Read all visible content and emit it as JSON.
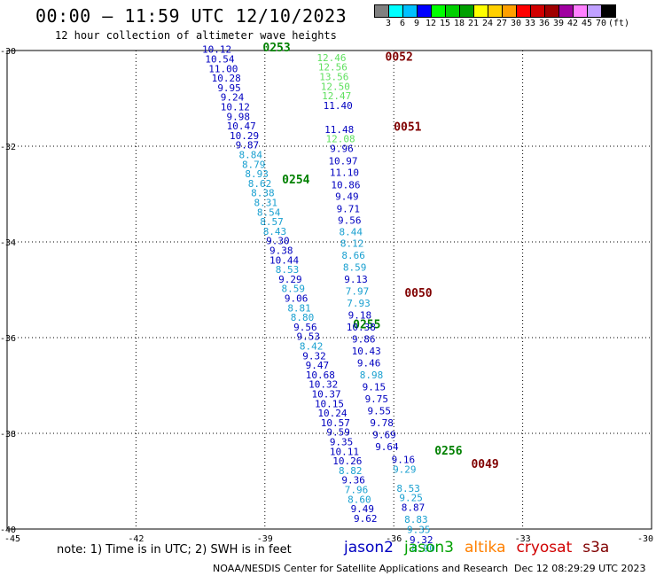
{
  "title": "00:00 – 11:59 UTC 12/10/2023",
  "subtitle": "12 hour collection of altimeter wave heights",
  "colorbar": {
    "colors": [
      "#808080",
      "#00ffff",
      "#00c0ff",
      "#0000ff",
      "#00ff00",
      "#00d000",
      "#00a000",
      "#ffff00",
      "#ffd000",
      "#ffa000",
      "#ff0000",
      "#d00000",
      "#a00000",
      "#a000a0",
      "#ff80ff",
      "#c0a0ff",
      "#000000"
    ],
    "labels": [
      "3",
      "6",
      "9",
      "12",
      "15",
      "18",
      "21",
      "24",
      "27",
      "30",
      "33",
      "36",
      "39",
      "42",
      "45",
      "70"
    ],
    "unit": "(ft)"
  },
  "axes": {
    "x_ticks": [
      "-45",
      "-42",
      "-39",
      "-36",
      "-33",
      "-30"
    ],
    "y_ticks": [
      "-30",
      "-32",
      "-34",
      "-36",
      "-38",
      "-40"
    ]
  },
  "chart_data": {
    "type": "scatter",
    "xlim": [
      -45,
      -30
    ],
    "ylim": [
      -40,
      -30
    ],
    "grid": true,
    "passes": [
      {
        "label": "0253",
        "label_color": "#008000",
        "label_lon": -39.05,
        "label_lat": -30.02,
        "points": [
          {
            "lon": -40.12,
            "lat": -30.05,
            "v": "10.12",
            "c": "#0000c0"
          },
          {
            "lon": -40.05,
            "lat": -30.25,
            "v": "10.54",
            "c": "#0000c0"
          },
          {
            "lon": -39.97,
            "lat": -30.45,
            "v": "11.00",
            "c": "#0000c0"
          },
          {
            "lon": -39.9,
            "lat": -30.65,
            "v": "10.28",
            "c": "#0000c0"
          },
          {
            "lon": -39.83,
            "lat": -30.85,
            "v": "9.95",
            "c": "#0000c0"
          },
          {
            "lon": -39.76,
            "lat": -31.05,
            "v": "9.24",
            "c": "#0000c0"
          },
          {
            "lon": -39.69,
            "lat": -31.25,
            "v": "10.12",
            "c": "#0000c0"
          },
          {
            "lon": -39.62,
            "lat": -31.45,
            "v": "9.98",
            "c": "#0000c0"
          },
          {
            "lon": -39.55,
            "lat": -31.65,
            "v": "10.47",
            "c": "#0000c0"
          },
          {
            "lon": -39.48,
            "lat": -31.85,
            "v": "10.29",
            "c": "#0000c0"
          },
          {
            "lon": -39.41,
            "lat": -32.05,
            "v": "9.87",
            "c": "#0000c0"
          },
          {
            "lon": -39.33,
            "lat": -32.25,
            "v": "8.84",
            "c": "#1aa0d0"
          },
          {
            "lon": -39.26,
            "lat": -32.45,
            "v": "8.79",
            "c": "#1aa0d0"
          },
          {
            "lon": -39.19,
            "lat": -32.65,
            "v": "8.93",
            "c": "#1aa0d0"
          },
          {
            "lon": -39.12,
            "lat": -32.85,
            "v": "8.62",
            "c": "#1aa0d0"
          },
          {
            "lon": -39.05,
            "lat": -33.05,
            "v": "8.38",
            "c": "#1aa0d0"
          },
          {
            "lon": -38.98,
            "lat": -33.25,
            "v": "8.31",
            "c": "#1aa0d0"
          },
          {
            "lon": -38.91,
            "lat": -33.45,
            "v": "8.54",
            "c": "#1aa0d0"
          },
          {
            "lon": -38.84,
            "lat": -33.65,
            "v": "8.57",
            "c": "#1aa0d0"
          },
          {
            "lon": -38.77,
            "lat": -33.85,
            "v": "8.43",
            "c": "#1aa0d0"
          }
        ]
      },
      {
        "label": "0254",
        "label_color": "#008000",
        "label_lon": -38.6,
        "label_lat": -32.78,
        "points": [
          {
            "lon": -38.7,
            "lat": -34.05,
            "v": "9.30",
            "c": "#0000c0"
          },
          {
            "lon": -38.62,
            "lat": -34.25,
            "v": "9.38",
            "c": "#0000c0"
          },
          {
            "lon": -38.55,
            "lat": -34.45,
            "v": "10.44",
            "c": "#0000c0"
          },
          {
            "lon": -38.48,
            "lat": -34.65,
            "v": "8.53",
            "c": "#1aa0d0"
          },
          {
            "lon": -38.41,
            "lat": -34.85,
            "v": "9.29",
            "c": "#0000c0"
          },
          {
            "lon": -38.34,
            "lat": -35.05,
            "v": "8.59",
            "c": "#1aa0d0"
          },
          {
            "lon": -38.27,
            "lat": -35.25,
            "v": "9.06",
            "c": "#0000c0"
          },
          {
            "lon": -38.2,
            "lat": -35.45,
            "v": "8.81",
            "c": "#1aa0d0"
          },
          {
            "lon": -38.13,
            "lat": -35.65,
            "v": "8.80",
            "c": "#1aa0d0"
          },
          {
            "lon": -38.06,
            "lat": -35.85,
            "v": "9.56",
            "c": "#0000c0"
          },
          {
            "lon": -37.99,
            "lat": -36.05,
            "v": "9.53",
            "c": "#0000c0"
          },
          {
            "lon": -37.92,
            "lat": -36.25,
            "v": "8.42",
            "c": "#1aa0d0"
          },
          {
            "lon": -37.85,
            "lat": -36.45,
            "v": "9.32",
            "c": "#0000c0"
          },
          {
            "lon": -37.78,
            "lat": -36.65,
            "v": "9.47",
            "c": "#0000c0"
          },
          {
            "lon": -37.71,
            "lat": -36.85,
            "v": "10.68",
            "c": "#0000c0"
          },
          {
            "lon": -37.64,
            "lat": -37.05,
            "v": "10.32",
            "c": "#0000c0"
          }
        ]
      },
      {
        "label": "0255",
        "label_color": "#008000",
        "label_lon": -36.95,
        "label_lat": -35.81,
        "points": [
          {
            "lon": -37.57,
            "lat": -37.25,
            "v": "10.37",
            "c": "#0000c0"
          },
          {
            "lon": -37.5,
            "lat": -37.45,
            "v": "10.15",
            "c": "#0000c0"
          },
          {
            "lon": -37.43,
            "lat": -37.65,
            "v": "10.24",
            "c": "#0000c0"
          },
          {
            "lon": -37.36,
            "lat": -37.85,
            "v": "10.57",
            "c": "#0000c0"
          },
          {
            "lon": -37.29,
            "lat": -38.05,
            "v": "9.59",
            "c": "#0000c0"
          },
          {
            "lon": -37.22,
            "lat": -38.25,
            "v": "9.35",
            "c": "#0000c0"
          },
          {
            "lon": -37.15,
            "lat": -38.45,
            "v": "10.11",
            "c": "#0000c0"
          },
          {
            "lon": -37.08,
            "lat": -38.65,
            "v": "10.26",
            "c": "#0000c0"
          },
          {
            "lon": -37.01,
            "lat": -38.85,
            "v": "8.82",
            "c": "#1aa0d0"
          },
          {
            "lon": -36.94,
            "lat": -39.05,
            "v": "9.36",
            "c": "#0000c0"
          },
          {
            "lon": -36.87,
            "lat": -39.25,
            "v": "7.96",
            "c": "#1aa0d0"
          },
          {
            "lon": -36.8,
            "lat": -39.45,
            "v": "8.60",
            "c": "#1aa0d0"
          },
          {
            "lon": -36.73,
            "lat": -39.65,
            "v": "9.49",
            "c": "#0000c0"
          },
          {
            "lon": -36.66,
            "lat": -39.85,
            "v": "9.62",
            "c": "#0000c0"
          }
        ]
      },
      {
        "label": "0256",
        "label_color": "#008000",
        "label_lon": -35.05,
        "label_lat": -38.44,
        "points": [
          {
            "lon": -35.78,
            "lat": -38.62,
            "v": "9.16",
            "c": "#0000c0"
          },
          {
            "lon": -35.75,
            "lat": -38.82,
            "v": "9.29",
            "c": "#1aa0d0"
          },
          {
            "lon": -35.66,
            "lat": -39.22,
            "v": "8.53",
            "c": "#1aa0d0"
          },
          {
            "lon": -35.6,
            "lat": -39.42,
            "v": "9.25",
            "c": "#1aa0d0"
          },
          {
            "lon": -35.55,
            "lat": -39.62,
            "v": "8.87",
            "c": "#0000c0"
          },
          {
            "lon": -35.48,
            "lat": -39.87,
            "v": "8.83",
            "c": "#1aa0d0"
          },
          {
            "lon": -35.42,
            "lat": -40.08,
            "v": "9.35",
            "c": "#1aa0d0"
          },
          {
            "lon": -35.36,
            "lat": -40.3,
            "v": "9.32",
            "c": "#0000c0"
          },
          {
            "lon": -35.31,
            "lat": -40.47,
            "v": "8.90",
            "c": "#1aa0d0"
          }
        ]
      },
      {
        "label": "0052",
        "label_color": "#800000",
        "label_lon": -36.2,
        "label_lat": -30.21,
        "points": [
          {
            "lon": -37.45,
            "lat": -30.22,
            "v": "12.46",
            "c": "#60e060"
          },
          {
            "lon": -37.42,
            "lat": -30.42,
            "v": "12.56",
            "c": "#60e060"
          },
          {
            "lon": -37.39,
            "lat": -30.62,
            "v": "13.56",
            "c": "#60e060"
          },
          {
            "lon": -37.36,
            "lat": -30.82,
            "v": "12.50",
            "c": "#60e060"
          },
          {
            "lon": -37.33,
            "lat": -31.02,
            "v": "12.47",
            "c": "#60e060"
          },
          {
            "lon": -37.3,
            "lat": -31.22,
            "v": "11.40",
            "c": "#0000c0"
          }
        ]
      },
      {
        "label": "0051",
        "label_color": "#800000",
        "label_lon": -36.0,
        "label_lat": -31.68,
        "points": [
          {
            "lon": -37.27,
            "lat": -31.72,
            "v": "11.48",
            "c": "#0000c0"
          },
          {
            "lon": -37.24,
            "lat": -31.92,
            "v": "12.08",
            "c": "#60e060"
          },
          {
            "lon": -37.21,
            "lat": -32.12,
            "v": "9.96",
            "c": "#0000c0"
          },
          {
            "lon": -37.18,
            "lat": -32.38,
            "v": "10.97",
            "c": "#0000c0"
          },
          {
            "lon": -37.15,
            "lat": -32.62,
            "v": "11.10",
            "c": "#0000c0"
          },
          {
            "lon": -37.12,
            "lat": -32.88,
            "v": "10.86",
            "c": "#0000c0"
          },
          {
            "lon": -37.09,
            "lat": -33.12,
            "v": "9.49",
            "c": "#0000c0"
          },
          {
            "lon": -37.06,
            "lat": -33.38,
            "v": "9.71",
            "c": "#0000c0"
          },
          {
            "lon": -37.03,
            "lat": -33.62,
            "v": "9.56",
            "c": "#0000c0"
          },
          {
            "lon": -37.0,
            "lat": -33.86,
            "v": "8.44",
            "c": "#1aa0d0"
          },
          {
            "lon": -36.97,
            "lat": -34.1,
            "v": "8.12",
            "c": "#1aa0d0"
          },
          {
            "lon": -36.94,
            "lat": -34.35,
            "v": "8.66",
            "c": "#1aa0d0"
          },
          {
            "lon": -36.91,
            "lat": -34.6,
            "v": "8.59",
            "c": "#1aa0d0"
          },
          {
            "lon": -36.88,
            "lat": -34.85,
            "v": "9.13",
            "c": "#0000c0"
          },
          {
            "lon": -36.85,
            "lat": -35.1,
            "v": "7.97",
            "c": "#1aa0d0"
          }
        ]
      },
      {
        "label": "0050",
        "label_color": "#800000",
        "label_lon": -35.75,
        "label_lat": -35.15,
        "points": [
          {
            "lon": -36.82,
            "lat": -35.35,
            "v": "7.93",
            "c": "#1aa0d0"
          },
          {
            "lon": -36.79,
            "lat": -35.6,
            "v": "9.18",
            "c": "#0000c0"
          },
          {
            "lon": -36.76,
            "lat": -35.85,
            "v": "10.38",
            "c": "#0000c0"
          },
          {
            "lon": -36.7,
            "lat": -36.1,
            "v": "9.86",
            "c": "#0000c0"
          },
          {
            "lon": -36.64,
            "lat": -36.35,
            "v": "10.43",
            "c": "#0000c0"
          },
          {
            "lon": -36.58,
            "lat": -36.6,
            "v": "9.46",
            "c": "#0000c0"
          },
          {
            "lon": -36.52,
            "lat": -36.85,
            "v": "8.98",
            "c": "#1aa0d0"
          },
          {
            "lon": -36.46,
            "lat": -37.1,
            "v": "9.15",
            "c": "#0000c0"
          },
          {
            "lon": -36.4,
            "lat": -37.35,
            "v": "9.75",
            "c": "#0000c0"
          },
          {
            "lon": -36.34,
            "lat": -37.6,
            "v": "9.55",
            "c": "#0000c0"
          },
          {
            "lon": -36.28,
            "lat": -37.85,
            "v": "9.78",
            "c": "#0000c0"
          },
          {
            "lon": -36.22,
            "lat": -38.1,
            "v": "9.69",
            "c": "#0000c0"
          },
          {
            "lon": -36.16,
            "lat": -38.35,
            "v": "9.64",
            "c": "#0000c0"
          }
        ]
      },
      {
        "label": "0049",
        "label_color": "#800000",
        "label_lon": -34.2,
        "label_lat": -38.72,
        "points": []
      }
    ]
  },
  "note": "note: 1) Time is in UTC; 2) SWH is in feet",
  "legend": [
    {
      "name": "jason2",
      "color": "#0000c0"
    },
    {
      "name": "jason3",
      "color": "#00a000"
    },
    {
      "name": "altika",
      "color": "#ff8000"
    },
    {
      "name": "cryosat",
      "color": "#d00000"
    },
    {
      "name": "s3a",
      "color": "#800000"
    }
  ],
  "credit": "NOAA/NESDIS Center for Satellite Applications and Research",
  "timestamp": "Dec 12 08:29:29 UTC 2023"
}
